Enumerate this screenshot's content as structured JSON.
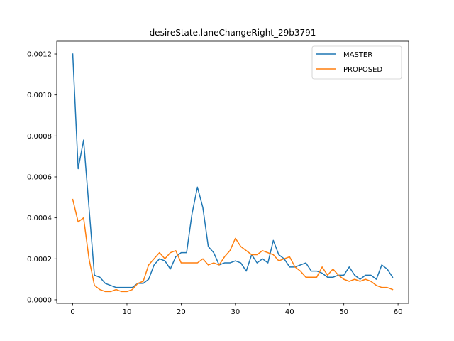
{
  "chart_data": {
    "type": "line",
    "title": "desireState.laneChangeRight_29b3791",
    "xlabel": "",
    "ylabel": "",
    "xlim": [
      -2.95,
      61.95
    ],
    "ylim": [
      -1.75e-05,
      0.0012625
    ],
    "xticks": [
      0,
      10,
      20,
      30,
      40,
      50,
      60
    ],
    "yticks": [
      0.0,
      0.0002,
      0.0004,
      0.0006,
      0.0008,
      0.001,
      0.0012
    ],
    "ytick_labels": [
      "0.0000",
      "0.0002",
      "0.0004",
      "0.0006",
      "0.0008",
      "0.0010",
      "0.0012"
    ],
    "grid": false,
    "legend_position": "top-right",
    "series": [
      {
        "name": "MASTER",
        "color": "#1f77b4",
        "x": [
          0,
          1,
          2,
          3,
          4,
          5,
          6,
          7,
          8,
          9,
          10,
          11,
          12,
          13,
          14,
          15,
          16,
          17,
          18,
          19,
          20,
          21,
          22,
          23,
          24,
          25,
          26,
          27,
          28,
          29,
          30,
          31,
          32,
          33,
          34,
          35,
          36,
          37,
          38,
          39,
          40,
          41,
          42,
          43,
          44,
          45,
          46,
          47,
          48,
          49,
          50,
          51,
          52,
          53,
          54,
          55,
          56,
          57,
          58,
          59
        ],
        "values": [
          0.0012,
          0.00064,
          0.00078,
          0.00045,
          0.00012,
          0.00011,
          8e-05,
          7e-05,
          6e-05,
          6e-05,
          6e-05,
          6e-05,
          8e-05,
          8e-05,
          0.0001,
          0.00017,
          0.0002,
          0.00019,
          0.00015,
          0.00021,
          0.00023,
          0.00023,
          0.00042,
          0.00055,
          0.00045,
          0.00026,
          0.00023,
          0.00017,
          0.00018,
          0.00018,
          0.00019,
          0.00018,
          0.00014,
          0.00022,
          0.00018,
          0.0002,
          0.00018,
          0.00029,
          0.00022,
          0.0002,
          0.00016,
          0.00016,
          0.00017,
          0.00018,
          0.00014,
          0.00014,
          0.00013,
          0.00011,
          0.00011,
          0.00012,
          0.00012,
          0.00016,
          0.00012,
          0.0001,
          0.00012,
          0.00012,
          0.0001,
          0.00017,
          0.00015,
          0.00011
        ]
      },
      {
        "name": "PROPOSED",
        "color": "#ff7f0e",
        "x": [
          0,
          1,
          2,
          3,
          4,
          5,
          6,
          7,
          8,
          9,
          10,
          11,
          12,
          13,
          14,
          15,
          16,
          17,
          18,
          19,
          20,
          21,
          22,
          23,
          24,
          25,
          26,
          27,
          28,
          29,
          30,
          31,
          32,
          33,
          34,
          35,
          36,
          37,
          38,
          39,
          40,
          41,
          42,
          43,
          44,
          45,
          46,
          47,
          48,
          49,
          50,
          51,
          52,
          53,
          54,
          55,
          56,
          57,
          58,
          59
        ],
        "values": [
          0.00049,
          0.00038,
          0.0004,
          0.0002,
          7e-05,
          5e-05,
          4e-05,
          4e-05,
          5e-05,
          4e-05,
          4e-05,
          5e-05,
          8e-05,
          9e-05,
          0.00017,
          0.0002,
          0.00023,
          0.0002,
          0.00023,
          0.00024,
          0.00018,
          0.00018,
          0.00018,
          0.00018,
          0.0002,
          0.00017,
          0.00018,
          0.00017,
          0.00021,
          0.00024,
          0.0003,
          0.00026,
          0.00024,
          0.00022,
          0.00022,
          0.00024,
          0.00023,
          0.00022,
          0.00019,
          0.0002,
          0.00021,
          0.00016,
          0.00014,
          0.00011,
          0.00011,
          0.00011,
          0.00016,
          0.00012,
          0.00015,
          0.00012,
          0.0001,
          9e-05,
          0.0001,
          9e-05,
          0.0001,
          9e-05,
          7e-05,
          6e-05,
          6e-05,
          5e-05
        ]
      }
    ]
  }
}
